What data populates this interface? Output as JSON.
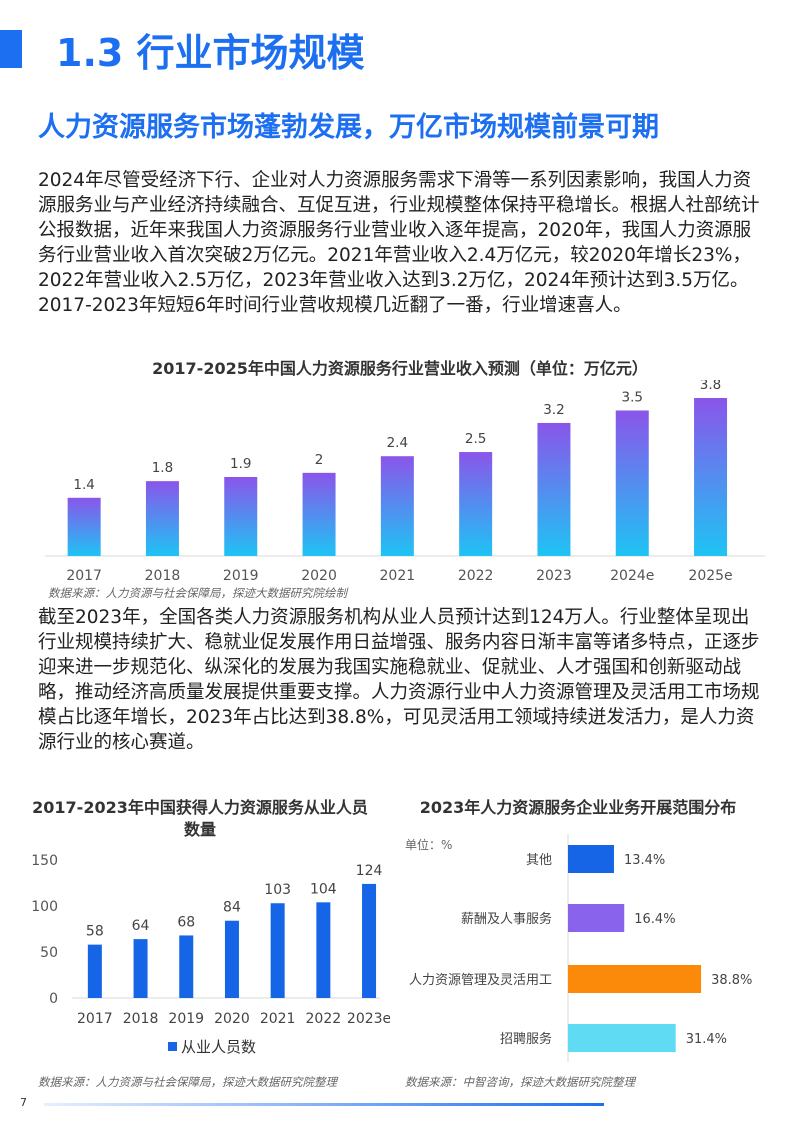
{
  "header": {
    "section_title": "1.3 行业市场规模",
    "subtitle": "人力资源服务市场蓬勃发展，万亿市场规模前景可期"
  },
  "paragraphs": {
    "p1": "2024年尽管受经济下行、企业对人力资源服务需求下滑等一系列因素影响，我国人力资源服务业与产业经济持续融合、互促互进，行业规模整体保持平稳增长。根据人社部统计公报数据，近年来我国人力资源服务行业营业收入逐年提高，2020年，我国人力资源服务行业营业收入首次突破2万亿元。2021年营业收入2.4万亿元，较2020年增长23%，2022年营业收入2.5万亿，2023年营业收入达到3.2万亿，2024年预计达到3.5万亿。2017-2023年短短6年时间行业营收规模几近翻了一番，行业增速喜人。",
    "p2": "截至2023年，全国各类人力资源服务机构从业人员预计达到124万人。行业整体呈现出行业规模持续扩大、稳就业促发展作用日益增强、服务内容日渐丰富等诸多特点，正逐步迎来进一步规范化、纵深化的发展为我国实施稳就业、促就业、人才强国和创新驱动战略，推动经济高质量发展提供重要支撑。人力资源行业中人力资源管理及灵活用工市场规模占比逐年增长，2023年占比达到38.8%，可见灵活用工领域持续迸发活力，是人力资源行业的核心赛道。"
  },
  "sources": {
    "revenue": "数据来源：人力资源与社会保障局，探迹大数据研究院绘制",
    "employees": "数据来源：人力资源与社会保障局，探迹大数据研究院整理",
    "business": "数据来源：中智咨询，探迹大数据研究院整理"
  },
  "colors": {
    "accent": "#1d6ff2",
    "bar_top": "#8a55ea",
    "bar_bottom": "#1ec4f4",
    "employee_bar": "#1565e6",
    "business": [
      "#1565e6",
      "#8a63ec",
      "#fb8a0a",
      "#5fdcf4"
    ]
  },
  "page_number": "7",
  "chart_data": [
    {
      "type": "bar",
      "title": "2017-2025年中国人力资源服务行业营业收入预测（单位：万亿元）",
      "categories": [
        "2017",
        "2018",
        "2019",
        "2020",
        "2021",
        "2022",
        "2023",
        "2024e",
        "2025e"
      ],
      "values": [
        1.4,
        1.8,
        1.9,
        2,
        2.4,
        2.5,
        3.2,
        3.5,
        3.8
      ],
      "value_labels": [
        "1.4",
        "1.8",
        "1.9",
        "2",
        "2.4",
        "2.5",
        "3.2",
        "3.5",
        "3.8"
      ],
      "ylim": [
        0,
        3.8
      ],
      "grid": false
    },
    {
      "type": "bar",
      "title": "2017-2023年中国获得人力资源服务从业人员数量",
      "categories": [
        "2017",
        "2018",
        "2019",
        "2020",
        "2021",
        "2022",
        "2023e"
      ],
      "series": [
        {
          "name": "从业人员数",
          "values": [
            58,
            64,
            68,
            84,
            103,
            104,
            124
          ]
        }
      ],
      "value_labels": [
        "58",
        "64",
        "68",
        "84",
        "103",
        "104",
        "124"
      ],
      "yticks": [
        "0",
        "50",
        "100",
        "150"
      ],
      "ylim": [
        0,
        150
      ],
      "grid": false,
      "legend": "bottom"
    },
    {
      "type": "bar",
      "orientation": "horizontal",
      "title": "2023年人力资源服务企业业务开展范围分布",
      "unit_label": "单位：%",
      "categories": [
        "其他",
        "薪酬及人事服务",
        "人力资源管理及灵活用工",
        "招聘服务"
      ],
      "values": [
        13.4,
        16.4,
        38.8,
        31.4
      ],
      "value_labels": [
        "13.4%",
        "16.4%",
        "38.8%",
        "31.4%"
      ]
    }
  ]
}
